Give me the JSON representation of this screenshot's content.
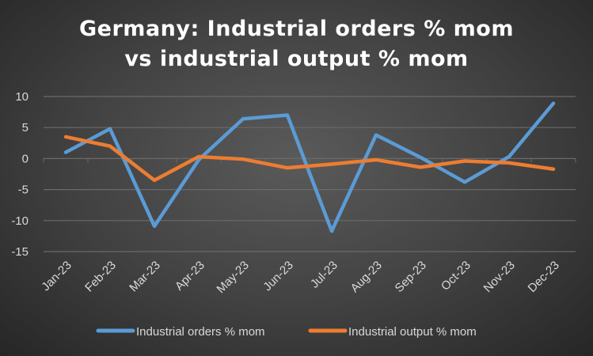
{
  "chart_data": {
    "type": "line",
    "title": "Germany: Industrial orders % mom vs industrial output % mom",
    "title_lines": [
      "Germany: Industrial orders % mom",
      "vs industrial output % mom"
    ],
    "categories": [
      "Jan-23",
      "Feb-23",
      "Mar-23",
      "Apr-23",
      "May-23",
      "Jun-23",
      "Jul-23",
      "Aug-23",
      "Sep-23",
      "Oct-23",
      "Nov-23",
      "Dec-23"
    ],
    "series": [
      {
        "name": "Industrial orders % mom",
        "color": "#5b9bd5",
        "values": [
          1.0,
          4.8,
          -10.9,
          -0.2,
          6.4,
          7.0,
          -11.7,
          3.8,
          0.2,
          -3.8,
          0.3,
          8.9
        ]
      },
      {
        "name": "Industrial output % mom",
        "color": "#ed7d31",
        "values": [
          3.5,
          2.0,
          -3.5,
          0.3,
          -0.1,
          -1.5,
          -0.9,
          -0.2,
          -1.4,
          -0.4,
          -0.7,
          -1.7
        ]
      }
    ],
    "yticks": [
      10,
      5,
      0,
      -5,
      -10,
      -15
    ],
    "ylim": [
      -15,
      10
    ],
    "grid": true,
    "legend": "bottom",
    "xlabel": "",
    "ylabel": ""
  }
}
